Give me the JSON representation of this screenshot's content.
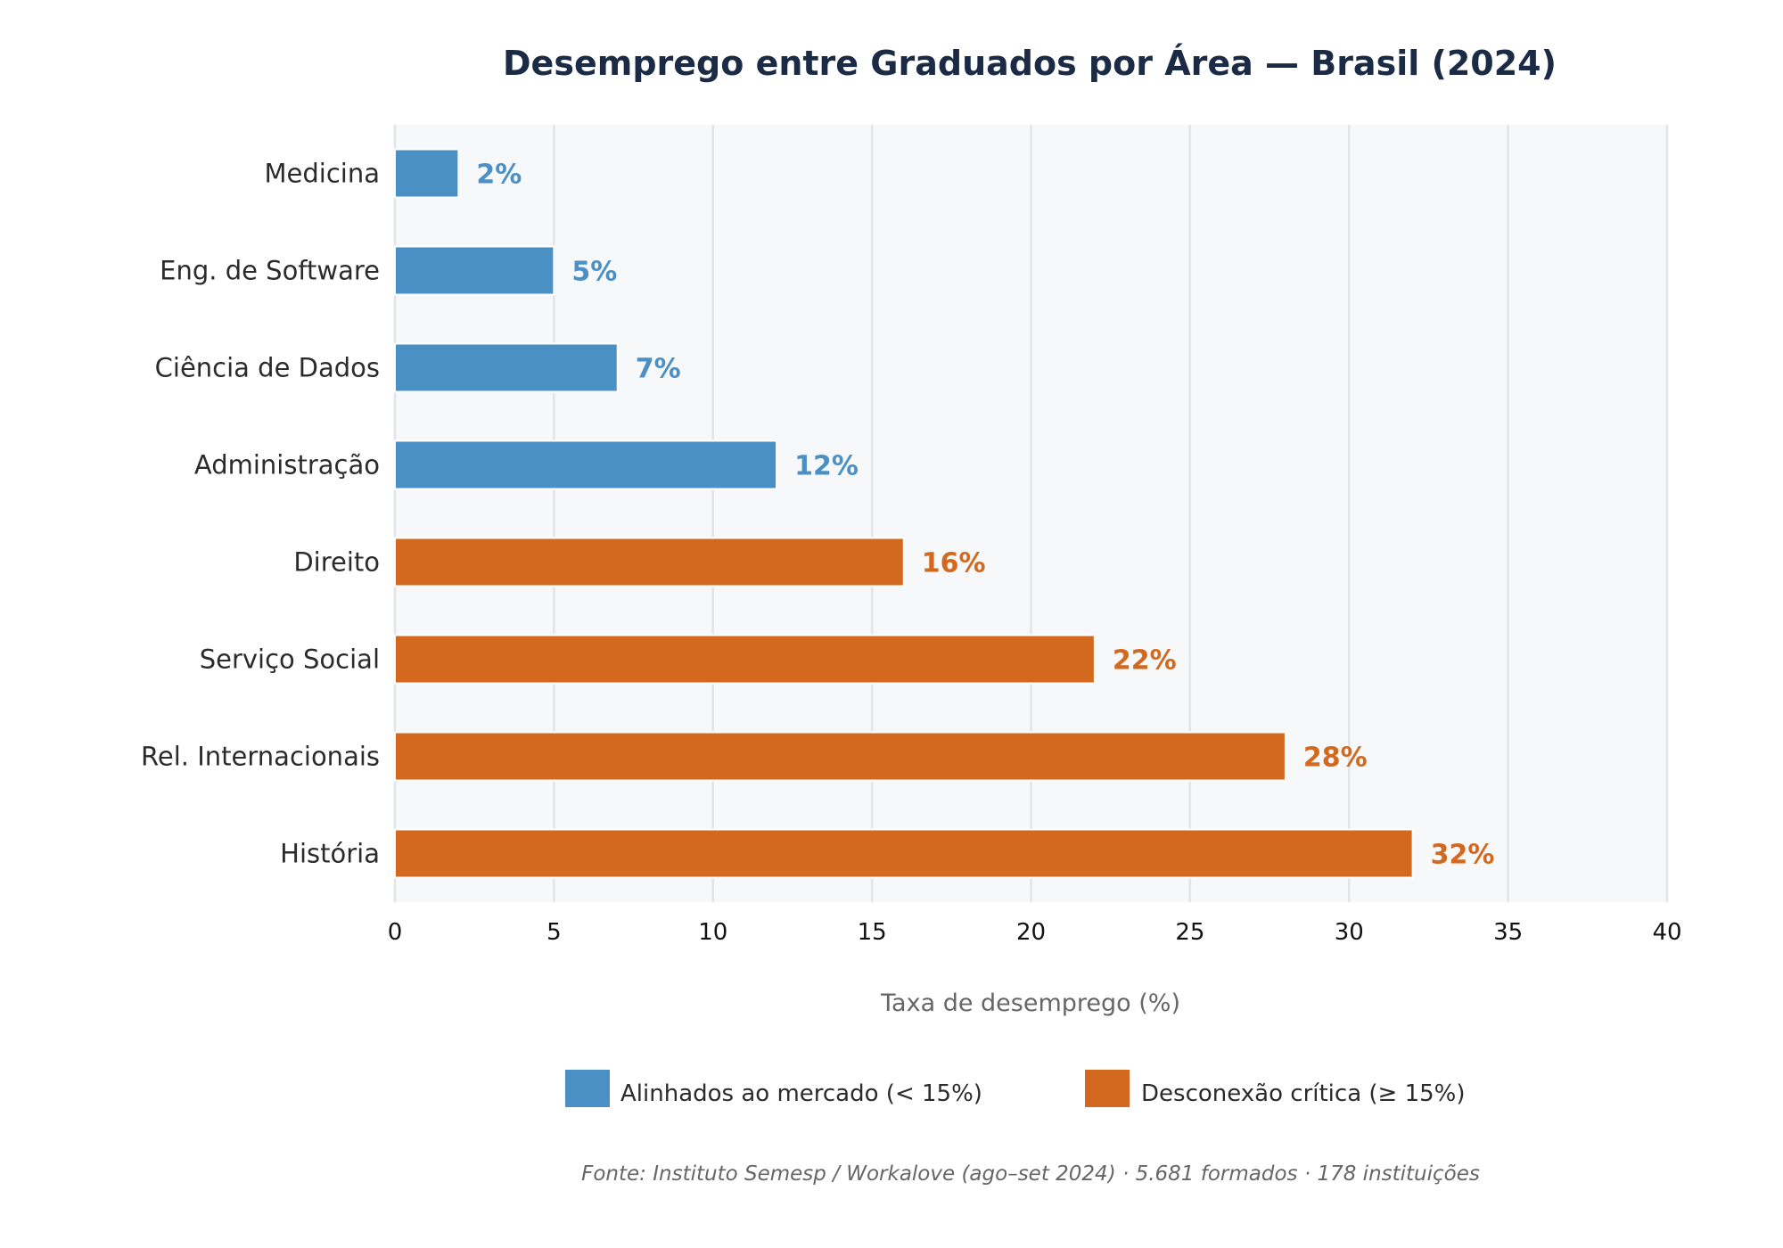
{
  "chart_data": {
    "type": "bar",
    "orientation": "horizontal",
    "title": "Desemprego entre Graduados por Área — Brasil (2024)",
    "xlabel": "Taxa de desemprego (%)",
    "ylabel": "",
    "xlim": [
      0,
      40
    ],
    "x_ticks": [
      "0",
      "5",
      "10",
      "15",
      "20",
      "25",
      "30",
      "35",
      "40"
    ],
    "grid": true,
    "categories": [
      "Medicina",
      "Eng. de Software",
      "Ciência de Dados",
      "Administração",
      "Direito",
      "Serviço Social",
      "Rel. Internacionais",
      "História"
    ],
    "values": [
      2,
      5,
      7,
      12,
      16,
      22,
      28,
      32
    ],
    "value_labels": [
      "2%",
      "5%",
      "7%",
      "12%",
      "16%",
      "22%",
      "28%",
      "32%"
    ],
    "groups": [
      "aligned",
      "aligned",
      "aligned",
      "aligned",
      "critical",
      "critical",
      "critical",
      "critical"
    ],
    "legend": {
      "position": "bottom",
      "items": [
        {
          "key": "aligned",
          "label": "Alinhados ao mercado (< 15%)",
          "color": "#4a90c4"
        },
        {
          "key": "critical",
          "label": "Desconexão crítica (≥ 15%)",
          "color": "#d2691e"
        }
      ]
    },
    "source": "Fonte: Instituto Semesp / Workalove (ago–set 2024) · 5.681 formados · 178 instituições",
    "colors": {
      "aligned": "#4a90c4",
      "critical": "#d2691e",
      "plot_background": "#f7f8fa",
      "grid": "#e2e4e8",
      "title": "#1b2b45"
    }
  }
}
